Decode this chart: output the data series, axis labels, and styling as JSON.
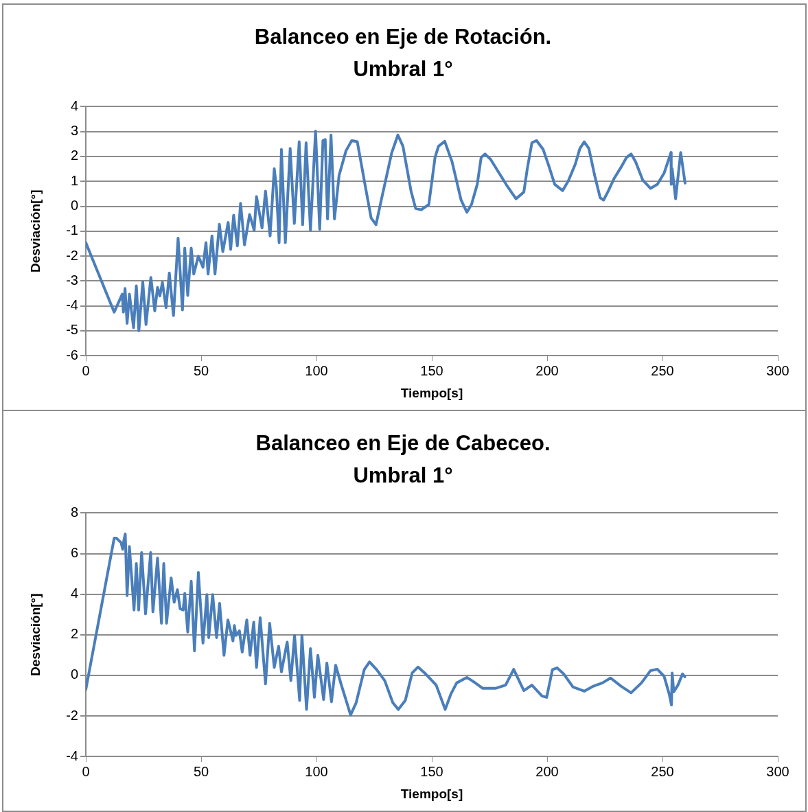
{
  "chart_data": [
    {
      "type": "line",
      "title": "Balanceo en Eje de Rotación.",
      "subtitle": "Umbral 1°",
      "xlabel": "Tiempo[s]",
      "ylabel": "Desviación[°]",
      "color": "#4a7ebb",
      "grid": "y",
      "legend": false,
      "xlim": [
        0,
        300
      ],
      "xticks": [
        0,
        50,
        100,
        150,
        200,
        250,
        300
      ],
      "ylim": [
        -6,
        4
      ],
      "yticks": [
        -6,
        -5,
        -4,
        -3,
        -2,
        -1,
        0,
        1,
        2,
        3,
        4
      ],
      "x": [
        0,
        12.3,
        15.8,
        16.3,
        17,
        17.9,
        18.9,
        20.7,
        21.9,
        23,
        24.7,
        26.1,
        28.2,
        29.9,
        31.1,
        32.1,
        33.2,
        34.8,
        36.2,
        38,
        40,
        41.9,
        42.9,
        44.2,
        45.7,
        46.8,
        48.8,
        50.8,
        52.1,
        53,
        54.7,
        56,
        57.9,
        59.4,
        61.7,
        62.8,
        64.1,
        65.7,
        67.1,
        68.8,
        71,
        73,
        74,
        76.4,
        77.9,
        79.9,
        81.7,
        82.6,
        83.8,
        84.8,
        86.5,
        88.6,
        90.4,
        92.5,
        94,
        95.5,
        97.4,
        99.6,
        101.4,
        102.8,
        103.8,
        104.8,
        106.3,
        107.8,
        109.8,
        112.8,
        115.3,
        117.7,
        121.2,
        123.7,
        125.8,
        128.1,
        132.6,
        135.3,
        137.5,
        141,
        143,
        145.4,
        148.7,
        151.4,
        152.9,
        155.6,
        158.8,
        162.7,
        165.2,
        167.2,
        169.7,
        171.4,
        173.1,
        175.6,
        178.6,
        182.5,
        186.5,
        189.9,
        191.4,
        193.4,
        195.4,
        198.3,
        200.8,
        203.3,
        206.7,
        209.2,
        212.2,
        214.2,
        216.1,
        218.1,
        220.6,
        223,
        224.5,
        226.5,
        229,
        232,
        234.4,
        236.4,
        238.4,
        241.4,
        244.8,
        247.8,
        250.7,
        253.7,
        253.8,
        254.2,
        255.7,
        257.9,
        259.8
      ],
      "values": [
        -1.46,
        -4.25,
        -3.53,
        -4.25,
        -3.3,
        -4.7,
        -3.53,
        -4.88,
        -3.2,
        -5.0,
        -3.04,
        -4.75,
        -2.86,
        -4.2,
        -3.26,
        -3.6,
        -3.06,
        -4.07,
        -2.68,
        -4.39,
        -1.28,
        -4.16,
        -1.68,
        -3.58,
        -1.68,
        -2.72,
        -2.0,
        -2.45,
        -1.46,
        -2.72,
        -1.19,
        -2.72,
        -0.72,
        -1.82,
        -0.65,
        -1.73,
        -0.36,
        -1.59,
        0.12,
        -1.55,
        -0.33,
        -0.96,
        0.39,
        -0.87,
        0.61,
        -1.19,
        1.51,
        0.79,
        -1.46,
        2.28,
        -1.46,
        2.32,
        -0.69,
        2.59,
        -0.74,
        2.55,
        -0.96,
        3.02,
        -0.92,
        2.64,
        2.68,
        -0.51,
        2.86,
        -0.51,
        1.24,
        2.23,
        2.64,
        2.59,
        0.79,
        -0.47,
        -0.74,
        0.25,
        2.14,
        2.86,
        2.41,
        0.61,
        -0.09,
        -0.14,
        0.07,
        1.96,
        2.41,
        2.61,
        1.78,
        0.25,
        -0.24,
        0.07,
        0.88,
        1.96,
        2.1,
        1.87,
        1.42,
        0.84,
        0.3,
        0.57,
        1.51,
        2.55,
        2.64,
        2.28,
        1.6,
        0.88,
        0.63,
        1.02,
        1.69,
        2.32,
        2.59,
        2.32,
        1.24,
        0.34,
        0.25,
        0.61,
        1.11,
        1.56,
        1.96,
        2.1,
        1.78,
        1.06,
        0.72,
        0.88,
        1.33,
        2.16,
        0.88,
        1.51,
        0.3,
        2.16,
        0.93
      ]
    },
    {
      "type": "line",
      "title": "Balanceo en Eje de Cabeceo.",
      "subtitle": "Umbral 1°",
      "xlabel": "Tiempo[s]",
      "ylabel": "Desviación[°]",
      "color": "#4a7ebb",
      "grid": "y",
      "legend": false,
      "xlim": [
        0,
        300
      ],
      "xticks": [
        0,
        50,
        100,
        150,
        200,
        250,
        300
      ],
      "ylim": [
        -4,
        8
      ],
      "yticks": [
        -4,
        -2,
        0,
        2,
        4,
        6,
        8
      ],
      "x": [
        0,
        12.3,
        13.3,
        15.3,
        16,
        16.5,
        17.1,
        17.9,
        18.9,
        20.9,
        21.9,
        22.9,
        24.2,
        25.9,
        28.1,
        29.1,
        31.1,
        32.8,
        33.8,
        35,
        37,
        38.3,
        39.7,
        40.9,
        42.2,
        42.9,
        44.2,
        45.7,
        47.1,
        48.8,
        50.8,
        52.5,
        53.3,
        55,
        56.7,
        58,
        59.9,
        61.6,
        63.8,
        64.4,
        65.1,
        66.6,
        67.8,
        69.8,
        71.2,
        72.8,
        74,
        75.6,
        77.9,
        79.7,
        81.7,
        83.6,
        84.8,
        87.3,
        88.9,
        90.5,
        92.7,
        93.7,
        95.7,
        97.4,
        99.1,
        100.6,
        103.1,
        104.5,
        106.5,
        108.3,
        110.8,
        114.8,
        117.2,
        120.7,
        123,
        126.1,
        129.6,
        133.1,
        135.5,
        138.5,
        141.5,
        144,
        146.9,
        151.9,
        155.8,
        158.3,
        160.8,
        165.2,
        168.2,
        172.1,
        177.6,
        182,
        185.5,
        189.9,
        193.4,
        197.8,
        199.8,
        202.3,
        204.3,
        207.2,
        211.2,
        216.1,
        220.1,
        224,
        227.5,
        232,
        236.4,
        240.9,
        244.8,
        247.8,
        250.7,
        252.9,
        253.9,
        254.2,
        254.9,
        256.7,
        258.7,
        259.7
      ],
      "values": [
        -0.7,
        6.76,
        6.76,
        6.54,
        6.21,
        6.65,
        6.97,
        3.93,
        6.35,
        3.22,
        5.51,
        3.22,
        6.05,
        3.03,
        6.05,
        3.13,
        5.78,
        2.57,
        5.51,
        2.57,
        4.8,
        3.6,
        4.22,
        3.28,
        3.22,
        4.04,
        2.13,
        4.64,
        1.21,
        5.07,
        1.59,
        3.98,
        1.86,
        3.98,
        1.86,
        3.55,
        0.99,
        2.73,
        1.7,
        2.46,
        1.97,
        2.19,
        1.15,
        2.73,
        0.99,
        2.62,
        0.39,
        2.84,
        -0.42,
        2.57,
        0.39,
        1.43,
        0.17,
        1.64,
        -0.26,
        1.97,
        -1.24,
        1.97,
        -1.68,
        1.32,
        -1.08,
        0.99,
        -1.19,
        0.61,
        -1.3,
        0.5,
        -0.48,
        -1.95,
        -1.35,
        0.28,
        0.66,
        0.28,
        -0.26,
        -1.35,
        -1.68,
        -1.24,
        0.12,
        0.41,
        0.12,
        -0.48,
        -1.68,
        -0.91,
        -0.37,
        -0.1,
        -0.32,
        -0.64,
        -0.64,
        -0.48,
        0.3,
        -0.75,
        -0.48,
        -1.02,
        -1.08,
        0.28,
        0.37,
        0.07,
        -0.57,
        -0.78,
        -0.53,
        -0.37,
        -0.13,
        -0.53,
        -0.86,
        -0.37,
        0.23,
        0.3,
        -0.04,
        -0.91,
        -1.46,
        0.12,
        -0.81,
        -0.48,
        0.07,
        -0.07
      ]
    }
  ]
}
